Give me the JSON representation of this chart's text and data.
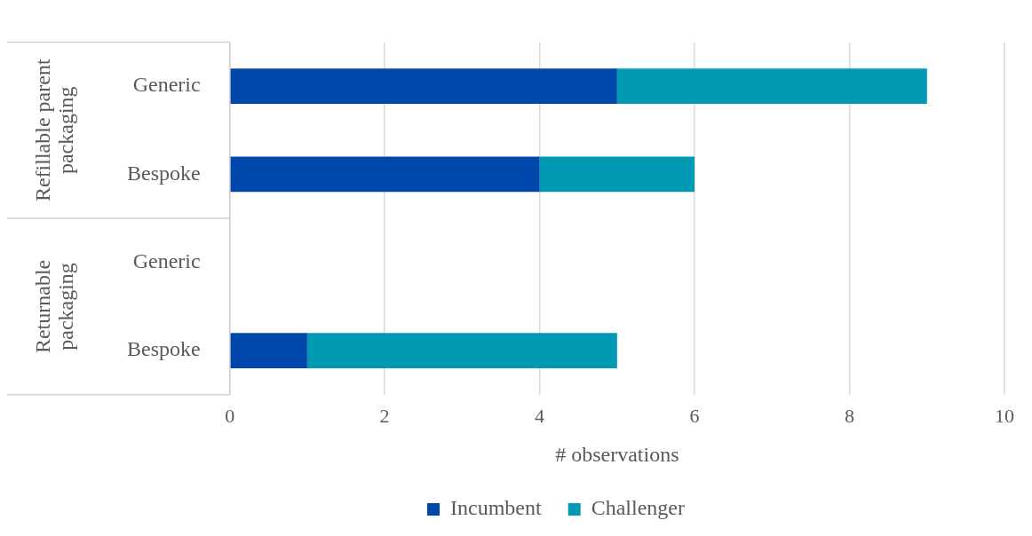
{
  "chart_data": {
    "type": "bar",
    "orientation": "horizontal",
    "stacked": true,
    "categories": [
      "Generic",
      "Bespoke",
      "Generic",
      "Bespoke"
    ],
    "series": [
      {
        "name": "Incumbent",
        "color": "#0047ab",
        "values": [
          5,
          4,
          null,
          1
        ]
      },
      {
        "name": "Challenger",
        "color": "#009ab4",
        "values": [
          4,
          2,
          null,
          4
        ]
      }
    ],
    "annotations": [
      "Refillable parent packaging",
      "Returnable packaging"
    ],
    "xlabel": "# observations",
    "xlim": [
      0,
      10
    ],
    "xticks": [
      0,
      2,
      4,
      6,
      8,
      10
    ],
    "grid": "x",
    "legend": "bottom"
  }
}
